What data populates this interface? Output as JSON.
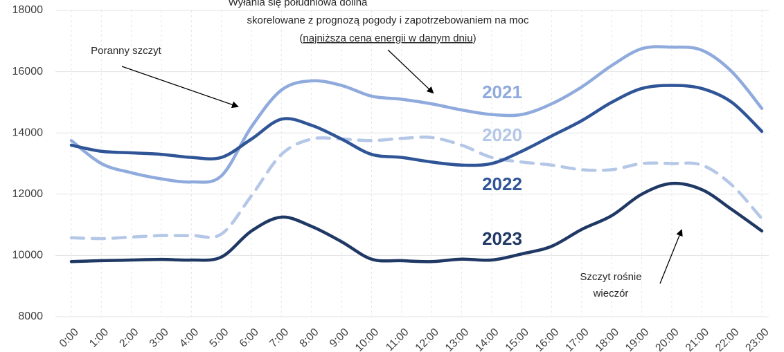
{
  "chart_data": {
    "type": "line",
    "categories": [
      "0:00",
      "1:00",
      "2:00",
      "3:00",
      "4:00",
      "5:00",
      "6:00",
      "7:00",
      "8:00",
      "9:00",
      "10:00",
      "11:00",
      "12:00",
      "13:00",
      "14:00",
      "15:00",
      "16:00",
      "17:00",
      "18:00",
      "19:00",
      "20:00",
      "21:00",
      "22:00",
      "23:00"
    ],
    "series": [
      {
        "name": "2021",
        "color": "#8faadc",
        "dashed": false,
        "values": [
          13750,
          13000,
          12700,
          12500,
          12400,
          12600,
          14200,
          15400,
          15700,
          15550,
          15200,
          15100,
          14950,
          14750,
          14600,
          14600,
          14950,
          15500,
          16200,
          16750,
          16800,
          16700,
          16000,
          14800
        ]
      },
      {
        "name": "2020",
        "color": "#b4c7e7",
        "dashed": true,
        "values": [
          10580,
          10550,
          10600,
          10650,
          10650,
          10700,
          11950,
          13300,
          13800,
          13800,
          13750,
          13820,
          13850,
          13600,
          13200,
          13050,
          12950,
          12800,
          12800,
          13000,
          13000,
          12950,
          12300,
          11200
        ]
      },
      {
        "name": "2022",
        "color": "#2f5597",
        "dashed": false,
        "values": [
          13600,
          13400,
          13350,
          13300,
          13200,
          13200,
          13800,
          14450,
          14250,
          13800,
          13300,
          13200,
          13050,
          12950,
          13000,
          13400,
          13900,
          14400,
          15000,
          15450,
          15550,
          15450,
          15000,
          14050
        ]
      },
      {
        "name": "2023",
        "color": "#1f3864",
        "dashed": false,
        "values": [
          9800,
          9830,
          9850,
          9870,
          9850,
          9950,
          10800,
          11250,
          10950,
          10450,
          9880,
          9830,
          9800,
          9880,
          9850,
          10050,
          10300,
          10850,
          11300,
          12000,
          12350,
          12150,
          11500,
          10800
        ]
      }
    ],
    "ylim": [
      8000,
      18000
    ],
    "yticks": [
      8000,
      10000,
      12000,
      14000,
      16000,
      18000
    ],
    "grid": true,
    "annotations": [
      {
        "lines": [
          "Wyłania się południowa dolina",
          "skorelowane z prognozą pogody i zapotrzebowaniem na moc",
          [
            "(",
            "najniższa cena energii w danym dniu",
            ")"
          ]
        ]
      },
      {
        "lines": [
          "Poranny szczyt"
        ]
      },
      {
        "lines": [
          "Szczyt rośnie",
          "wieczór"
        ]
      }
    ]
  }
}
